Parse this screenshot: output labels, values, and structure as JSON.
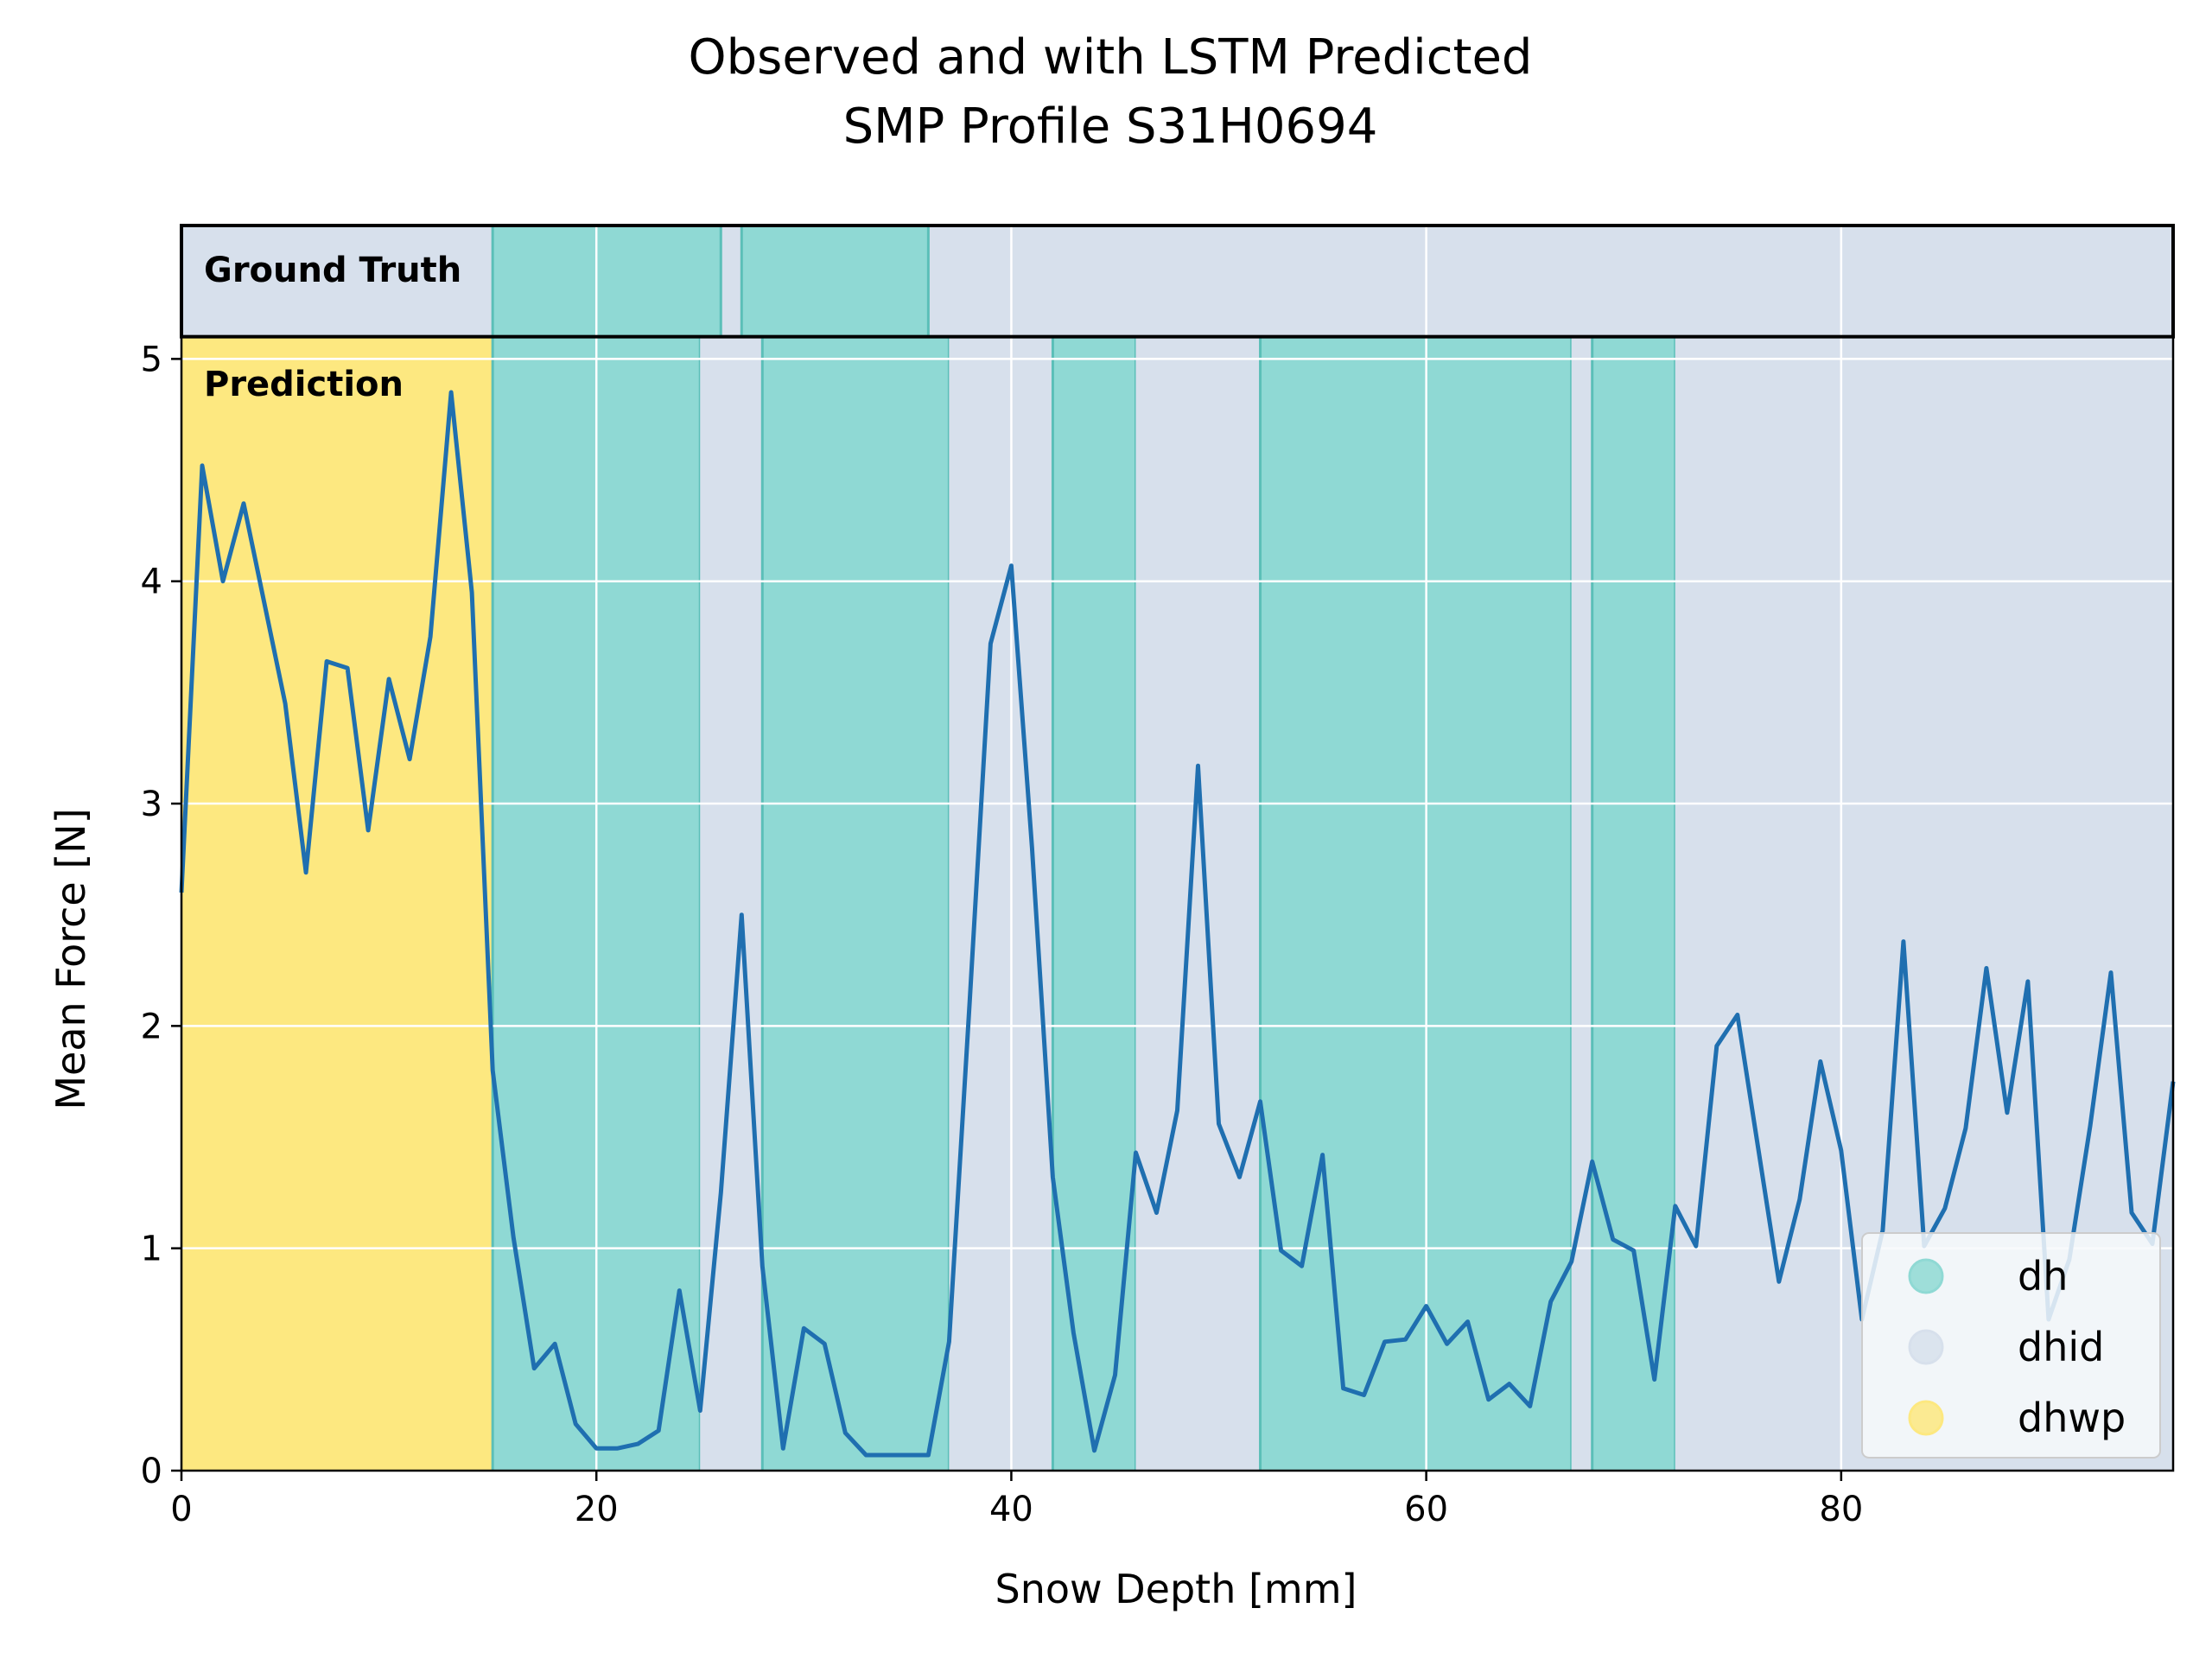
{
  "chart_data": {
    "type": "line",
    "title_line1": "Observed and with LSTM Predicted",
    "title_line2": "SMP Profile S31H0694",
    "xlabel": "Snow Depth [mm]",
    "ylabel": "Mean Force [N]",
    "xlim": [
      0,
      96
    ],
    "ylim": [
      0,
      5.6
    ],
    "xticks": [
      "0",
      "20",
      "40",
      "60",
      "80"
    ],
    "yticks": [
      "0",
      "1",
      "2",
      "3",
      "4",
      "5"
    ],
    "grid": true,
    "ground_truth_label": "Ground Truth",
    "prediction_label": "Prediction",
    "ground_truth_band_y": [
      5.1,
      5.6
    ],
    "class_colors": {
      "dh": "#8fd9d4",
      "dhid": "#d7e0ec",
      "dhwp": "#fde880"
    },
    "line_color": "#1f6fb0",
    "legend": {
      "position": "lower right",
      "entries": [
        {
          "label": "dh",
          "color": "#8fd9d4"
        },
        {
          "label": "dhid",
          "color": "#d7e0ec"
        },
        {
          "label": "dhwp",
          "color": "#fde880"
        }
      ]
    },
    "ground_truth_segments": [
      {
        "start": 0,
        "end": 15,
        "class": "dhid"
      },
      {
        "start": 15,
        "end": 26,
        "class": "dh"
      },
      {
        "start": 26,
        "end": 27,
        "class": "dhid"
      },
      {
        "start": 27,
        "end": 36,
        "class": "dh"
      },
      {
        "start": 36,
        "end": 96,
        "class": "dhid"
      }
    ],
    "prediction_segments": [
      {
        "start": 0,
        "end": 15,
        "class": "dhwp"
      },
      {
        "start": 15,
        "end": 25,
        "class": "dh"
      },
      {
        "start": 25,
        "end": 28,
        "class": "dhid"
      },
      {
        "start": 28,
        "end": 37,
        "class": "dh"
      },
      {
        "start": 37,
        "end": 42,
        "class": "dhid"
      },
      {
        "start": 42,
        "end": 46,
        "class": "dh"
      },
      {
        "start": 46,
        "end": 52,
        "class": "dhid"
      },
      {
        "start": 52,
        "end": 67,
        "class": "dh"
      },
      {
        "start": 67,
        "end": 68,
        "class": "dhid"
      },
      {
        "start": 68,
        "end": 72,
        "class": "dh"
      },
      {
        "start": 72,
        "end": 96,
        "class": "dhid"
      }
    ],
    "series": [
      {
        "x": [
          0,
          1,
          2,
          3,
          4,
          5,
          6,
          7,
          8,
          9,
          10,
          11,
          12,
          13,
          14,
          15,
          16,
          17,
          18,
          19,
          20,
          21,
          22,
          23,
          24,
          25,
          26,
          27,
          28,
          29,
          30,
          31,
          32,
          33,
          34,
          35,
          36,
          37,
          38,
          39,
          40,
          41,
          42,
          43,
          44,
          45,
          46,
          47,
          48,
          49,
          50,
          51,
          52,
          53,
          54,
          55,
          56,
          57,
          58,
          59,
          60,
          61,
          62,
          63,
          64,
          65,
          66,
          67,
          68,
          69,
          70,
          71,
          72,
          73,
          74,
          75,
          76,
          77,
          78,
          79,
          80,
          81,
          82,
          83,
          84,
          85,
          86,
          87,
          88,
          89,
          90,
          91,
          92,
          93,
          94,
          95,
          96
        ],
        "y": [
          2.6,
          4.52,
          4.0,
          4.35,
          3.9,
          3.45,
          2.69,
          3.64,
          3.61,
          2.88,
          3.56,
          3.2,
          3.75,
          4.85,
          3.95,
          1.8,
          1.05,
          0.46,
          0.57,
          0.21,
          0.1,
          0.1,
          0.12,
          0.18,
          0.81,
          0.27,
          1.25,
          2.5,
          0.92,
          0.1,
          0.64,
          0.57,
          0.17,
          0.07,
          0.07,
          0.07,
          0.07,
          0.58,
          2.12,
          3.72,
          4.07,
          2.8,
          1.32,
          0.62,
          0.09,
          0.43,
          1.43,
          1.16,
          1.62,
          3.17,
          1.56,
          1.32,
          1.66,
          0.99,
          0.92,
          1.42,
          0.37,
          0.34,
          0.58,
          0.59,
          0.74,
          0.57,
          0.67,
          0.32,
          0.39,
          0.29,
          0.76,
          0.94,
          1.39,
          1.04,
          0.99,
          0.41,
          1.19,
          1.01,
          1.91,
          2.05,
          1.45,
          0.85,
          1.22,
          1.84,
          1.44,
          0.68,
          1.08,
          2.38,
          1.01,
          1.18,
          1.54,
          2.26,
          1.61,
          2.2,
          0.68,
          0.95,
          1.55,
          2.24,
          1.16,
          1.02,
          1.75
        ]
      }
    ]
  }
}
